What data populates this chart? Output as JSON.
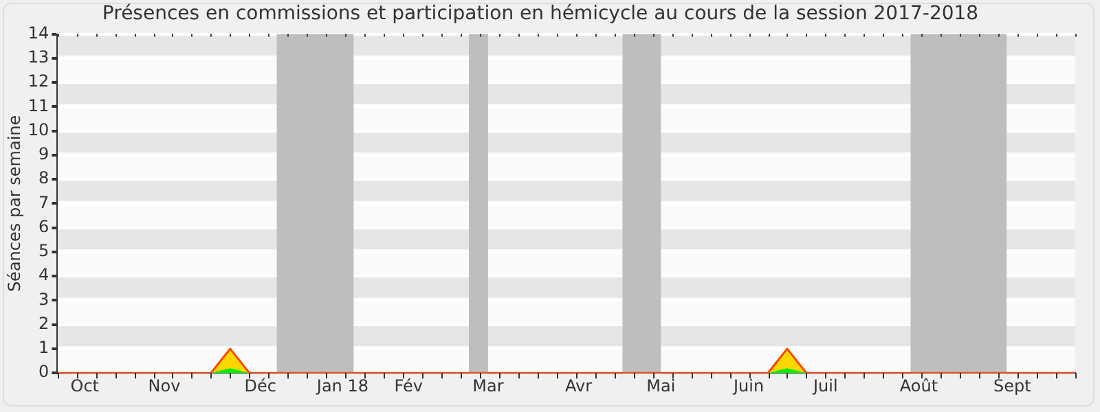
{
  "chart_data": {
    "type": "area",
    "title": "Présences en commissions et participation en hémicycle au cours de la session 2017-2018",
    "ylabel": "Séances par semaine",
    "x": [
      "2017-09-25",
      "2017-11-20",
      "2017-11-27",
      "2017-12-04",
      "2018-06-11",
      "2018-06-18",
      "2018-06-25",
      "2018-10-01"
    ],
    "series": [
      {
        "color": "#ffd700",
        "values": [
          0,
          0,
          1,
          0,
          0,
          1,
          0,
          0
        ]
      },
      {
        "color": "#00ee00",
        "values": [
          0,
          0,
          0.2,
          0,
          0,
          0.2,
          0,
          0
        ]
      }
    ],
    "xlim": [
      "2017-09-25",
      "2018-10-01"
    ],
    "xticks": [
      {
        "value": "2017-10-05",
        "label": "Oct"
      },
      {
        "value": "2017-11-03",
        "label": "Nov"
      },
      {
        "value": "2017-12-08",
        "label": "Déc"
      },
      {
        "value": "2018-01-07",
        "label": "Jan 18"
      },
      {
        "value": "2018-01-31",
        "label": "Fév"
      },
      {
        "value": "2018-03-01",
        "label": "Mar"
      },
      {
        "value": "2018-04-03",
        "label": "Avr"
      },
      {
        "value": "2018-05-03",
        "label": "Mai"
      },
      {
        "value": "2018-06-04",
        "label": "Juin"
      },
      {
        "value": "2018-07-02",
        "label": "Juil"
      },
      {
        "value": "2018-08-05",
        "label": "Août"
      },
      {
        "value": "2018-09-08",
        "label": "Sept"
      }
    ],
    "ylim": [
      0,
      14
    ],
    "yticks": [
      0,
      1,
      2,
      3,
      4,
      5,
      6,
      7,
      8,
      9,
      10,
      11,
      12,
      13,
      14
    ],
    "grid": "y",
    "bands": [
      {
        "axis": "x",
        "from": "2017-12-14",
        "to": "2018-01-11",
        "color": "#bebebe"
      },
      {
        "axis": "x",
        "from": "2018-02-22",
        "to": "2018-03-01",
        "color": "#bebebe"
      },
      {
        "axis": "x",
        "from": "2018-04-19",
        "to": "2018-05-03",
        "color": "#bebebe"
      },
      {
        "axis": "x",
        "from": "2018-08-02",
        "to": "2018-09-06",
        "color": "#bebebe"
      }
    ],
    "legend": false
  }
}
